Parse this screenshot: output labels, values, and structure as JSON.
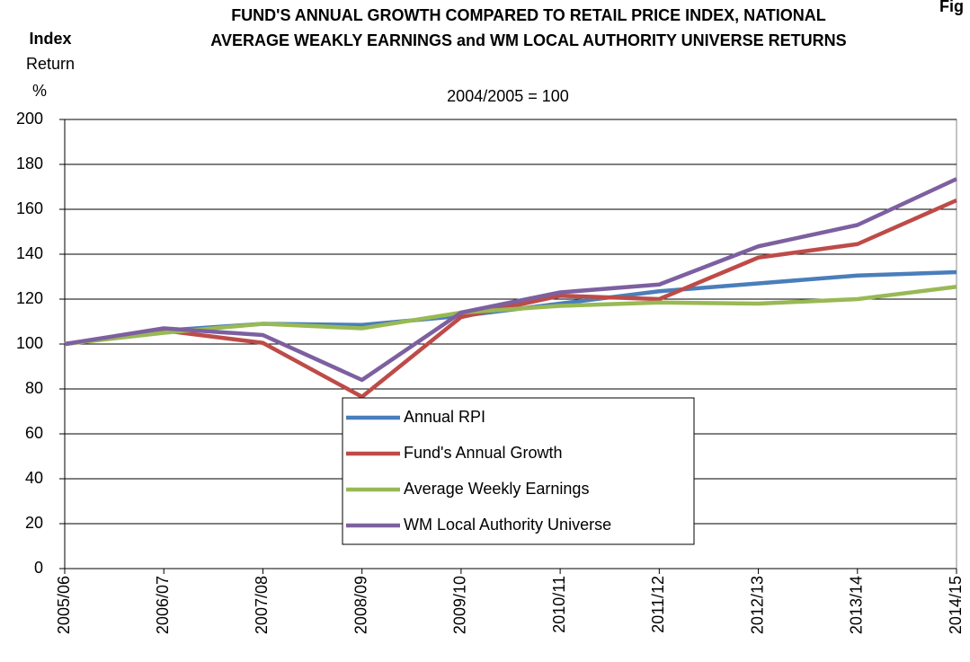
{
  "chart_data": {
    "type": "line",
    "title": "FUND'S ANNUAL GROWTH COMPARED TO RETAIL PRICE INDEX, NATIONAL",
    "title_line2": "AVERAGE WEAKLY EARNINGS and WM LOCAL AUTHORITY UNIVERSE RETURNS",
    "subtitle": "2004/2005 = 100",
    "y_label_bold": "Index",
    "y_label": "Return",
    "y_unit": "%",
    "corner_label": "Fig",
    "categories": [
      "2005/06",
      "2006/07",
      "2007/08",
      "2008/09",
      "2009/10",
      "2010/11",
      "2011/12",
      "2012/13",
      "2013/14",
      "2014/15"
    ],
    "series": [
      {
        "name": "Annual RPI",
        "color": "#4a7ebb",
        "values": [
          100,
          106,
          109,
          108.5,
          112.5,
          118,
          123.5,
          127,
          130.5,
          132
        ]
      },
      {
        "name": "Fund's Annual Growth",
        "color": "#be4b48",
        "values": [
          100,
          106,
          100.5,
          76.5,
          112,
          121.5,
          120,
          138.5,
          144.5,
          164
        ]
      },
      {
        "name": "Average Weekly Earnings",
        "color": "#98b954",
        "values": [
          100,
          105,
          109,
          107,
          114,
          117,
          118.5,
          118,
          120,
          125.5
        ]
      },
      {
        "name": "WM Local Authority Universe",
        "color": "#7d60a0",
        "values": [
          100,
          107,
          104,
          84,
          114,
          123,
          126.5,
          143.5,
          153,
          173.5
        ]
      }
    ],
    "ylim": [
      0,
      200
    ],
    "yticks": [
      0,
      20,
      40,
      60,
      80,
      100,
      120,
      140,
      160,
      180,
      200
    ],
    "grid": true
  }
}
